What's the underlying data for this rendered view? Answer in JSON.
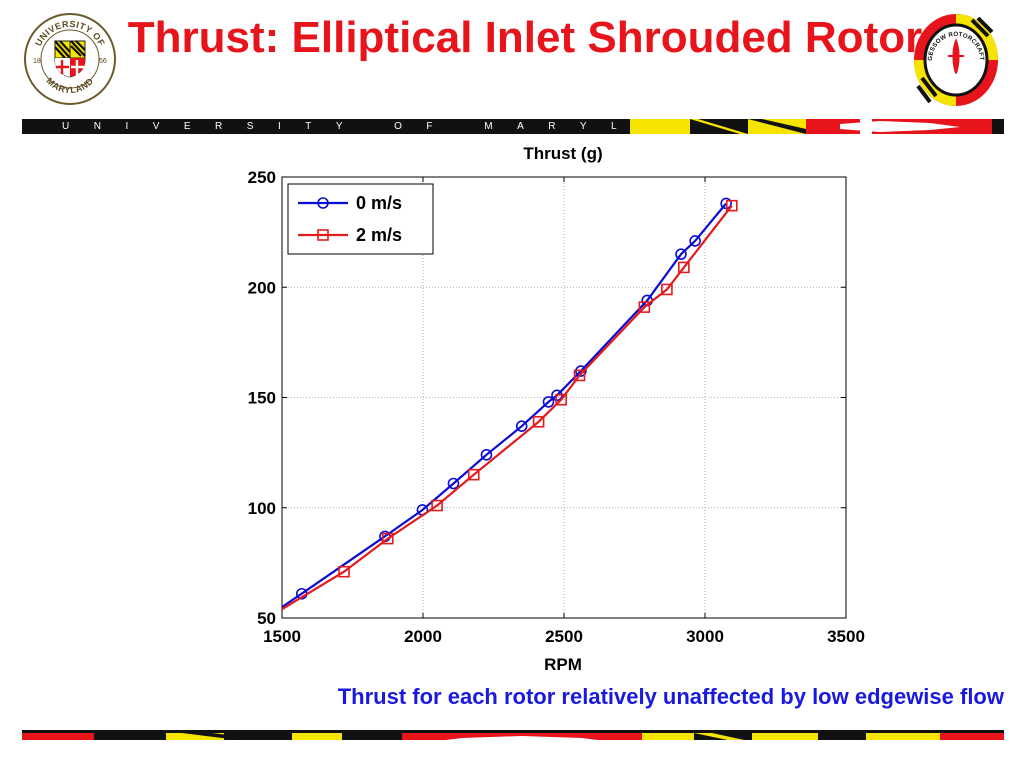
{
  "slide": {
    "title": "Thrust: Elliptical Inlet Shrouded Rotor",
    "banner_text": "UNIVERSITY OF MARYLAND",
    "caption": "Thrust  for each rotor relatively unaffected by low edgewise flow"
  },
  "logos": {
    "umd": {
      "top_text": "UNIVERSITY OF",
      "bottom_text": "MARYLAND",
      "year_left": "18",
      "year_right": "56"
    },
    "gessow": {
      "text": "ALFRED GESSOW ROTORCRAFT CENTER"
    }
  },
  "colors": {
    "title_red": "#e8141c",
    "caption_blue": "#1a1adf",
    "series_blue": "#0b0bd6",
    "series_red": "#e41a1c",
    "maryland_gold": "#f5e400",
    "maryland_black": "#111111"
  },
  "chart_data": {
    "type": "line",
    "title": "Thrust (g)",
    "xlabel": "RPM",
    "ylabel": "",
    "xlim": [
      1500,
      3500
    ],
    "ylim": [
      50,
      250
    ],
    "xticks": [
      1500,
      2000,
      2500,
      3000,
      3500
    ],
    "yticks": [
      50,
      100,
      150,
      200,
      250
    ],
    "grid": true,
    "legend_position": "top-left",
    "series": [
      {
        "name": "0 m/s",
        "color": "#0b0bd6",
        "marker": "circle",
        "x": [
          1500,
          1570,
          1865,
          1998,
          2108,
          2225,
          2350,
          2445,
          2475,
          2560,
          2795,
          2915,
          2965,
          3075
        ],
        "y": [
          55,
          61,
          87,
          99,
          111,
          124,
          137,
          148,
          151,
          162,
          194,
          215,
          221,
          238
        ]
      },
      {
        "name": "2 m/s",
        "color": "#e41a1c",
        "marker": "square",
        "x": [
          1500,
          1720,
          1875,
          2050,
          2180,
          2410,
          2490,
          2555,
          2785,
          2865,
          2925,
          3095
        ],
        "y": [
          54,
          71,
          86,
          101,
          115,
          139,
          149,
          160,
          191,
          199,
          209,
          237
        ]
      }
    ]
  }
}
